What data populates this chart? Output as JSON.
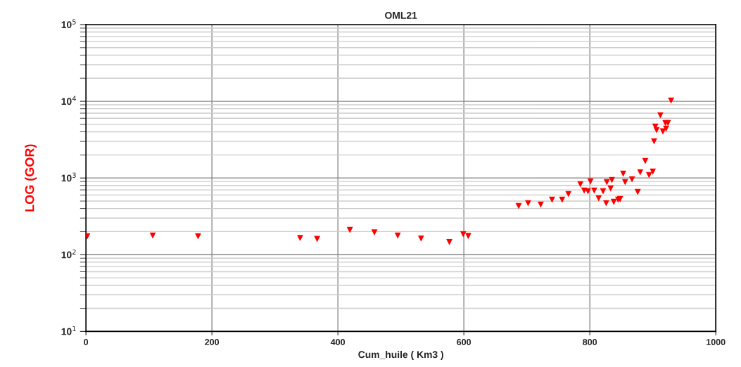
{
  "chart_data": {
    "type": "scatter",
    "title": "OML21",
    "xlabel": "Cum_huile ( Km3 )",
    "ylabel": "LOG (GOR)",
    "log": "y",
    "grid": true,
    "marker": "triangle",
    "xlim": [
      0,
      1000
    ],
    "xticks": [
      0,
      200,
      400,
      600,
      800,
      1000
    ],
    "ylim": [
      10,
      100000
    ],
    "yticks": [
      {
        "value": 10,
        "label": "10$^{1}$"
      },
      {
        "value": 100,
        "label": "10$^{2}$"
      },
      {
        "value": 1000,
        "label": "10$^{3}$"
      },
      {
        "value": 10000,
        "label": "10$^{4}$"
      },
      {
        "value": 100000,
        "label": "10$^{5}$"
      }
    ],
    "series": [
      {
        "color": "#ff0000",
        "x": [
          2,
          106,
          178,
          340,
          367,
          419,
          458,
          495,
          532,
          577,
          599,
          607,
          687,
          702,
          722,
          740,
          756,
          766,
          785,
          791,
          797,
          801,
          807,
          814,
          821,
          826,
          827,
          833,
          835,
          838,
          845,
          848,
          853,
          856,
          867,
          876,
          880,
          888,
          894,
          900,
          902,
          904,
          906,
          912,
          916,
          920,
          921,
          924,
          929
        ],
        "values": [
          174,
          177,
          174,
          165,
          160,
          210,
          195,
          177,
          162,
          146,
          185,
          175,
          430,
          468,
          448,
          520,
          520,
          615,
          826,
          684,
          670,
          900,
          684,
          542,
          670,
          468,
          881,
          728,
          938,
          487,
          520,
          530,
          1135,
          881,
          960,
          656,
          1183,
          1660,
          1090,
          1210,
          3000,
          4680,
          4200,
          6560,
          4040,
          5200,
          4380,
          5200,
          10200
        ]
      }
    ]
  }
}
